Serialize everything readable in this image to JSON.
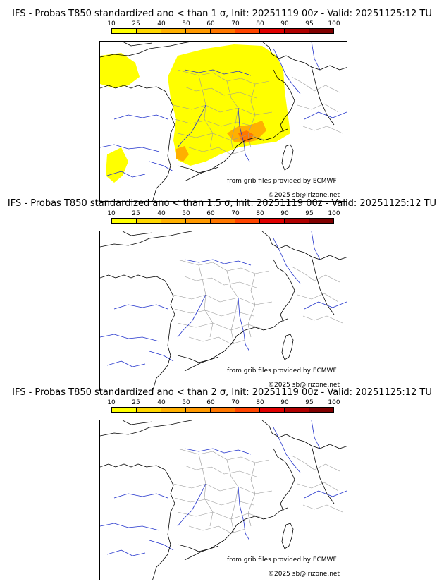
{
  "colorbar": {
    "ticks": [
      "10",
      "25",
      "40",
      "50",
      "60",
      "70",
      "80",
      "90",
      "95",
      "100"
    ],
    "colors": [
      "#ffff00",
      "#ffd700",
      "#ffb000",
      "#ff9900",
      "#ff7700",
      "#ff4400",
      "#e00000",
      "#b00000",
      "#800000"
    ]
  },
  "panels": [
    {
      "title": "IFS - Probas T850  standardized ano < than 1 σ, Init: 20251119 00z - Valid: 20251125:12 TU",
      "credit_source": "from grib files provided by ECMWF",
      "credit_copyright": "©2025 sb@irizone.net",
      "has_probability_field": true
    },
    {
      "title": "IFS - Probas T850  standardized ano < than 1.5 σ, Init: 20251119 00z - Valid: 20251125:12 TU",
      "credit_source": "from grib files provided by ECMWF",
      "credit_copyright": "©2025 sb@irizone.net",
      "has_probability_field": false
    },
    {
      "title": "IFS - Probas T850  standardized ano < than 2 σ, Init: 20251119 00z - Valid: 20251125:12 TU",
      "credit_source": "from grib files provided by ECMWF",
      "credit_copyright": "©2025 sb@irizone.net",
      "has_probability_field": false
    }
  ],
  "map_colors": {
    "coast": "#000000",
    "borders_internal": "#9a9a9a",
    "rivers": "#2233cc",
    "prob_yellow": "#ffff00",
    "prob_orange": "#ffb000",
    "prob_darkorange": "#ff7700"
  }
}
